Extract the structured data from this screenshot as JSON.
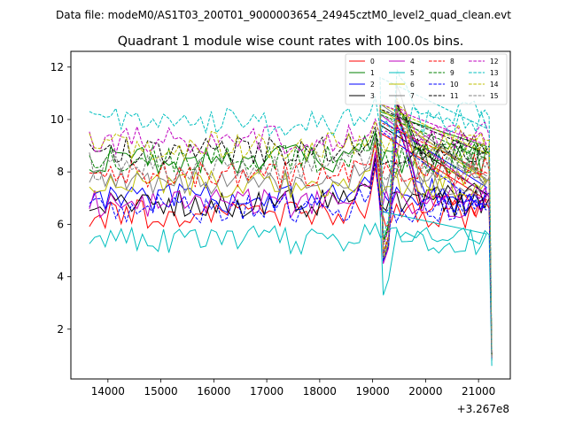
{
  "chart_data": {
    "type": "line",
    "suptitle": "Data file: modeM0/AS1T03_200T01_9000003654_24945cztM0_level2_quad_clean.evt",
    "title": "Quadrant 1 module wise count rates with 100.0s bins.",
    "xlabel": "",
    "ylabel": "",
    "x_offset_label": "+3.267e8",
    "xlim": [
      13300,
      21600
    ],
    "ylim": [
      0.1,
      12.6
    ],
    "x_ticks": [
      14000,
      15000,
      16000,
      17000,
      18000,
      19000,
      20000,
      21000
    ],
    "x_tick_labels": [
      "14000",
      "15000",
      "16000",
      "17000",
      "18000",
      "19000",
      "20000",
      "21000"
    ],
    "y_ticks": [
      2,
      4,
      6,
      8,
      10,
      12
    ],
    "y_tick_labels": [
      "2",
      "4",
      "6",
      "8",
      "10",
      "12"
    ],
    "x_start": 13650,
    "x_step": 100,
    "gap_start": 19140,
    "gap_end": 19520,
    "drop_x": 21250,
    "legend_position": "upper right",
    "series": [
      {
        "name": "0",
        "color": "#ff0000",
        "dash": "solid",
        "base": 6.4,
        "dip": 4.6,
        "peak_pre": 9.5,
        "peak_post": 9.8,
        "end": 0.9
      },
      {
        "name": "1",
        "color": "#008000",
        "dash": "solid",
        "base": 8.5,
        "dip": 5.4,
        "peak_pre": 10.3,
        "peak_post": 10.6,
        "end": 1.0
      },
      {
        "name": "2",
        "color": "#0000ff",
        "dash": "solid",
        "base": 7.0,
        "dip": 4.9,
        "peak_pre": 10.0,
        "peak_post": 10.1,
        "end": 0.9
      },
      {
        "name": "3",
        "color": "#000000",
        "dash": "solid",
        "base": 6.8,
        "dip": 4.7,
        "peak_pre": 9.8,
        "peak_post": 10.2,
        "end": 0.8
      },
      {
        "name": "4",
        "color": "#bf00bf",
        "dash": "solid",
        "base": 6.8,
        "dip": 4.5,
        "peak_pre": 10.2,
        "peak_post": 10.3,
        "end": 0.9
      },
      {
        "name": "5",
        "color": "#00bfbf",
        "dash": "solid",
        "base": 5.4,
        "dip": 3.3,
        "peak_pre": 6.5,
        "peak_post": 5.8,
        "end": 0.6
      },
      {
        "name": "6",
        "color": "#bfbf00",
        "dash": "solid",
        "base": 7.5,
        "dip": 4.7,
        "peak_pre": 10.4,
        "peak_post": 10.7,
        "end": 1.0
      },
      {
        "name": "7",
        "color": "#808080",
        "dash": "solid",
        "base": 7.6,
        "dip": 4.6,
        "peak_pre": 10.6,
        "peak_post": 11.3,
        "end": 1.1
      },
      {
        "name": "8",
        "color": "#ff0000",
        "dash": "dashed",
        "base": 7.9,
        "dip": 4.9,
        "peak_pre": 9.9,
        "peak_post": 10.1,
        "end": 1.0
      },
      {
        "name": "9",
        "color": "#008000",
        "dash": "dashed",
        "base": 8.5,
        "dip": 5.3,
        "peak_pre": 10.2,
        "peak_post": 10.5,
        "end": 1.0
      },
      {
        "name": "10",
        "color": "#0000ff",
        "dash": "dashed",
        "base": 6.6,
        "dip": 4.6,
        "peak_pre": 9.6,
        "peak_post": 9.7,
        "end": 0.9
      },
      {
        "name": "11",
        "color": "#000000",
        "dash": "dashed",
        "base": 8.8,
        "dip": 5.2,
        "peak_pre": 10.4,
        "peak_post": 10.6,
        "end": 1.0
      },
      {
        "name": "12",
        "color": "#bf00bf",
        "dash": "dashed",
        "base": 9.2,
        "dip": 5.2,
        "peak_pre": 10.6,
        "peak_post": 10.7,
        "end": 1.1
      },
      {
        "name": "13",
        "color": "#00bfbf",
        "dash": "dashed",
        "base": 9.9,
        "dip": 5.6,
        "peak_pre": 11.6,
        "peak_post": 11.9,
        "end": 1.2
      },
      {
        "name": "14",
        "color": "#bfbf00",
        "dash": "dashed",
        "base": 9.0,
        "dip": 5.0,
        "peak_pre": 10.6,
        "peak_post": 10.8,
        "end": 1.0
      },
      {
        "name": "15",
        "color": "#808080",
        "dash": "dashed",
        "base": 8.2,
        "dip": 4.8,
        "peak_pre": 10.2,
        "peak_post": 10.4,
        "end": 0.9
      }
    ]
  }
}
